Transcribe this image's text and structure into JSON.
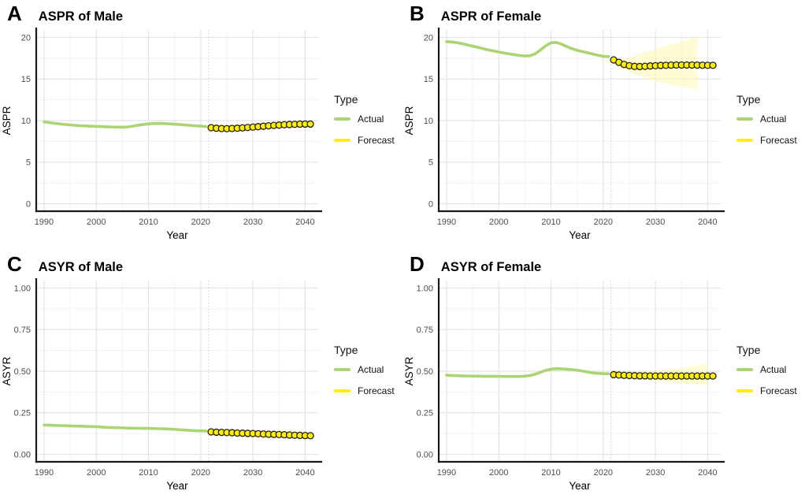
{
  "colors": {
    "actual": "#ABD473",
    "forecast": "#FFF000",
    "ribbon": "#FCFAAE",
    "ribbon_opacity": 0.55,
    "grid_major": "#E4E4E4",
    "grid_minor": "#F3F3F3",
    "axis": "#1A1A1A",
    "axis_title": "#000000",
    "tick_label": "#4D4D4D",
    "dot_stroke": "#1F1F1F",
    "divider": "#C9C9C9"
  },
  "legend": {
    "title": "Type",
    "items": [
      {
        "label": "Actual",
        "color_key": "actual"
      },
      {
        "label": "Forecast",
        "color_key": "forecast"
      }
    ]
  },
  "chart_data": [
    {
      "type": "line",
      "letter": "A",
      "title": "ASPR of Male",
      "xlabel": "Year",
      "ylabel": "ASPR",
      "ylim": [
        0,
        20
      ],
      "xlim": [
        1988.5,
        2042.5
      ],
      "yticks": [
        0,
        5,
        10,
        15,
        20
      ],
      "ytick_labels": [
        "0",
        "5",
        "10",
        "15",
        "20"
      ],
      "xticks": [
        1990,
        2000,
        2010,
        2020,
        2030,
        2040
      ],
      "forecast_start": 2022,
      "legend_position": "right",
      "grid": true,
      "series": [
        {
          "name": "Actual",
          "type": "line",
          "years": [
            1990,
            1991,
            1992,
            1993,
            1994,
            1995,
            1996,
            1997,
            1998,
            1999,
            2000,
            2001,
            2002,
            2003,
            2004,
            2005,
            2006,
            2007,
            2008,
            2009,
            2010,
            2011,
            2012,
            2013,
            2014,
            2015,
            2016,
            2017,
            2018,
            2019,
            2020,
            2021
          ],
          "values": [
            9.85,
            9.75,
            9.67,
            9.6,
            9.53,
            9.47,
            9.42,
            9.38,
            9.35,
            9.32,
            9.3,
            9.28,
            9.25,
            9.23,
            9.21,
            9.2,
            9.24,
            9.33,
            9.44,
            9.53,
            9.6,
            9.64,
            9.65,
            9.64,
            9.61,
            9.57,
            9.52,
            9.47,
            9.42,
            9.37,
            9.33,
            9.3
          ]
        },
        {
          "name": "Forecast",
          "type": "point",
          "years": [
            2022,
            2023,
            2024,
            2025,
            2026,
            2027,
            2028,
            2029,
            2030,
            2031,
            2032,
            2033,
            2034,
            2035,
            2036,
            2037,
            2038,
            2039,
            2040,
            2041
          ],
          "values": [
            9.15,
            9.08,
            9.04,
            9.03,
            9.05,
            9.08,
            9.12,
            9.17,
            9.22,
            9.27,
            9.32,
            9.37,
            9.42,
            9.46,
            9.5,
            9.53,
            9.55,
            9.57,
            9.58,
            9.58
          ]
        }
      ],
      "ribbon": {
        "years": [
          2022,
          2023,
          2024,
          2025,
          2026,
          2027,
          2028,
          2029,
          2030,
          2031,
          2032,
          2033,
          2034,
          2035,
          2036,
          2037,
          2038,
          2039,
          2040,
          2041
        ],
        "lower": [
          8.97,
          8.88,
          8.83,
          8.8,
          8.82,
          8.84,
          8.87,
          8.91,
          8.95,
          8.99,
          9.03,
          9.07,
          9.11,
          9.14,
          9.17,
          9.19,
          9.2,
          9.21,
          9.21,
          9.2
        ],
        "upper": [
          9.33,
          9.28,
          9.25,
          9.26,
          9.28,
          9.32,
          9.37,
          9.43,
          9.49,
          9.55,
          9.61,
          9.67,
          9.73,
          9.78,
          9.83,
          9.87,
          9.9,
          9.93,
          9.95,
          9.96
        ]
      }
    },
    {
      "type": "line",
      "letter": "B",
      "title": "ASPR of Female",
      "xlabel": "Year",
      "ylabel": "ASPR",
      "ylim": [
        0,
        20
      ],
      "xlim": [
        1988.5,
        2042.5
      ],
      "yticks": [
        0,
        5,
        10,
        15,
        20
      ],
      "ytick_labels": [
        "0",
        "5",
        "10",
        "15",
        "20"
      ],
      "xticks": [
        1990,
        2000,
        2010,
        2020,
        2030,
        2040
      ],
      "forecast_start": 2022,
      "legend_position": "right",
      "grid": true,
      "series": [
        {
          "name": "Actual",
          "type": "line",
          "years": [
            1990,
            1991,
            1992,
            1993,
            1994,
            1995,
            1996,
            1997,
            1998,
            1999,
            2000,
            2001,
            2002,
            2003,
            2004,
            2005,
            2006,
            2007,
            2008,
            2009,
            2010,
            2011,
            2012,
            2013,
            2014,
            2015,
            2016,
            2017,
            2018,
            2019,
            2020,
            2021
          ],
          "values": [
            19.5,
            19.45,
            19.37,
            19.25,
            19.1,
            18.95,
            18.8,
            18.65,
            18.5,
            18.37,
            18.25,
            18.13,
            18.02,
            17.92,
            17.83,
            17.77,
            17.8,
            18.05,
            18.5,
            19.0,
            19.35,
            19.4,
            19.2,
            18.9,
            18.65,
            18.45,
            18.3,
            18.15,
            18.0,
            17.85,
            17.73,
            17.7
          ]
        },
        {
          "name": "Forecast",
          "type": "point",
          "years": [
            2022,
            2023,
            2024,
            2025,
            2026,
            2027,
            2028,
            2029,
            2030,
            2031,
            2032,
            2033,
            2034,
            2035,
            2036,
            2037,
            2038,
            2039,
            2040,
            2041
          ],
          "values": [
            17.3,
            17.0,
            16.75,
            16.6,
            16.52,
            16.5,
            16.53,
            16.57,
            16.6,
            16.63,
            16.65,
            16.67,
            16.68,
            16.68,
            16.68,
            16.68,
            16.67,
            16.66,
            16.65,
            16.65
          ]
        }
      ],
      "ribbon": {
        "years": [
          2022,
          2023,
          2024,
          2025,
          2026,
          2027,
          2028,
          2029,
          2030,
          2031,
          2032,
          2033,
          2034,
          2035,
          2036,
          2037,
          2038
        ],
        "lower": [
          17.1,
          16.6,
          16.2,
          15.85,
          15.6,
          15.35,
          15.15,
          14.95,
          14.78,
          14.62,
          14.47,
          14.33,
          14.2,
          14.07,
          13.95,
          13.83,
          13.7
        ],
        "upper": [
          17.5,
          17.4,
          17.45,
          17.6,
          17.8,
          18.0,
          18.2,
          18.4,
          18.6,
          18.8,
          18.98,
          19.15,
          19.32,
          19.5,
          19.68,
          19.9,
          20.15
        ]
      }
    },
    {
      "type": "line",
      "letter": "C",
      "title": "ASYR of Male",
      "xlabel": "Year",
      "ylabel": "ASYR",
      "ylim": [
        0,
        1
      ],
      "xlim": [
        1988.5,
        2042.5
      ],
      "yticks": [
        0,
        0.25,
        0.5,
        0.75,
        1
      ],
      "ytick_labels": [
        "0.00",
        "0.25",
        "0.50",
        "0.75",
        "1.00"
      ],
      "xticks": [
        1990,
        2000,
        2010,
        2020,
        2030,
        2040
      ],
      "forecast_start": 2022,
      "legend_position": "right",
      "grid": true,
      "series": [
        {
          "name": "Actual",
          "type": "line",
          "years": [
            1990,
            1991,
            1992,
            1993,
            1994,
            1995,
            1996,
            1997,
            1998,
            1999,
            2000,
            2001,
            2002,
            2003,
            2004,
            2005,
            2006,
            2007,
            2008,
            2009,
            2010,
            2011,
            2012,
            2013,
            2014,
            2015,
            2016,
            2017,
            2018,
            2019,
            2020,
            2021
          ],
          "values": [
            0.176,
            0.175,
            0.174,
            0.173,
            0.172,
            0.171,
            0.17,
            0.169,
            0.168,
            0.167,
            0.166,
            0.164,
            0.162,
            0.161,
            0.16,
            0.159,
            0.158,
            0.157,
            0.157,
            0.156,
            0.156,
            0.155,
            0.154,
            0.153,
            0.152,
            0.15,
            0.148,
            0.146,
            0.144,
            0.142,
            0.141,
            0.14
          ]
        },
        {
          "name": "Forecast",
          "type": "point",
          "years": [
            2022,
            2023,
            2024,
            2025,
            2026,
            2027,
            2028,
            2029,
            2030,
            2031,
            2032,
            2033,
            2034,
            2035,
            2036,
            2037,
            2038,
            2039,
            2040,
            2041
          ],
          "values": [
            0.135,
            0.133,
            0.132,
            0.131,
            0.13,
            0.128,
            0.127,
            0.126,
            0.125,
            0.124,
            0.122,
            0.121,
            0.12,
            0.119,
            0.118,
            0.116,
            0.115,
            0.114,
            0.113,
            0.112
          ]
        }
      ],
      "ribbon": {
        "years": [
          2022,
          2023,
          2024,
          2025,
          2026,
          2027,
          2028,
          2029,
          2030,
          2031,
          2032,
          2033,
          2034,
          2035,
          2036,
          2037,
          2038,
          2039,
          2040,
          2041
        ],
        "lower": [
          0.13,
          0.127,
          0.125,
          0.124,
          0.122,
          0.12,
          0.118,
          0.117,
          0.115,
          0.113,
          0.111,
          0.11,
          0.108,
          0.106,
          0.105,
          0.103,
          0.101,
          0.099,
          0.098,
          0.096
        ],
        "upper": [
          0.14,
          0.139,
          0.139,
          0.138,
          0.138,
          0.136,
          0.136,
          0.135,
          0.135,
          0.135,
          0.133,
          0.132,
          0.132,
          0.132,
          0.131,
          0.129,
          0.129,
          0.129,
          0.128,
          0.128
        ]
      }
    },
    {
      "type": "line",
      "letter": "D",
      "title": "ASYR of Female",
      "xlabel": "Year",
      "ylabel": "ASYR",
      "ylim": [
        0,
        1
      ],
      "xlim": [
        1988.5,
        2042.5
      ],
      "yticks": [
        0,
        0.25,
        0.5,
        0.75,
        1
      ],
      "ytick_labels": [
        "0.00",
        "0.25",
        "0.50",
        "0.75",
        "1.00"
      ],
      "xticks": [
        1990,
        2000,
        2010,
        2020,
        2030,
        2040
      ],
      "forecast_start": 2022,
      "legend_position": "right",
      "grid": true,
      "series": [
        {
          "name": "Actual",
          "type": "line",
          "years": [
            1990,
            1991,
            1992,
            1993,
            1994,
            1995,
            1996,
            1997,
            1998,
            1999,
            2000,
            2001,
            2002,
            2003,
            2004,
            2005,
            2006,
            2007,
            2008,
            2009,
            2010,
            2011,
            2012,
            2013,
            2014,
            2015,
            2016,
            2017,
            2018,
            2019,
            2020,
            2021
          ],
          "values": [
            0.476,
            0.474,
            0.473,
            0.472,
            0.471,
            0.47,
            0.47,
            0.469,
            0.469,
            0.469,
            0.469,
            0.468,
            0.468,
            0.468,
            0.468,
            0.47,
            0.474,
            0.482,
            0.494,
            0.505,
            0.512,
            0.515,
            0.514,
            0.512,
            0.509,
            0.506,
            0.501,
            0.495,
            0.49,
            0.487,
            0.485,
            0.485
          ]
        },
        {
          "name": "Forecast",
          "type": "point",
          "years": [
            2022,
            2023,
            2024,
            2025,
            2026,
            2027,
            2028,
            2029,
            2030,
            2031,
            2032,
            2033,
            2034,
            2035,
            2036,
            2037,
            2038,
            2039,
            2040,
            2041
          ],
          "values": [
            0.479,
            0.477,
            0.475,
            0.474,
            0.473,
            0.472,
            0.472,
            0.471,
            0.471,
            0.471,
            0.471,
            0.471,
            0.471,
            0.471,
            0.471,
            0.471,
            0.471,
            0.471,
            0.471,
            0.471
          ]
        }
      ],
      "ribbon": {
        "years": [
          2022,
          2023,
          2024,
          2025,
          2026,
          2027,
          2028,
          2029,
          2030,
          2031,
          2032,
          2033,
          2034,
          2035,
          2036,
          2037,
          2038,
          2039,
          2040
        ],
        "lower": [
          0.472,
          0.466,
          0.461,
          0.457,
          0.453,
          0.45,
          0.447,
          0.444,
          0.441,
          0.438,
          0.436,
          0.433,
          0.431,
          0.428,
          0.426,
          0.423,
          0.421,
          0.418,
          0.416
        ],
        "upper": [
          0.486,
          0.488,
          0.49,
          0.492,
          0.494,
          0.497,
          0.499,
          0.502,
          0.505,
          0.508,
          0.511,
          0.514,
          0.517,
          0.521,
          0.525,
          0.529,
          0.533,
          0.538,
          0.543
        ]
      }
    }
  ]
}
